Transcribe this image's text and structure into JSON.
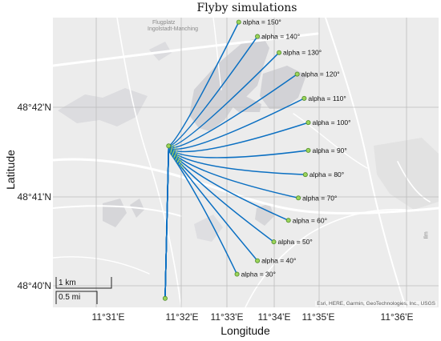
{
  "title": "Flyby simulations",
  "xlabel": "Longitude",
  "ylabel": "Latitude",
  "x_ticks": [
    "11°31'E",
    "11°32'E",
    "11°33'E",
    "11°34'E",
    "11°35'E",
    "11°36'E"
  ],
  "y_ticks": [
    "48°42'N",
    "48°41'N",
    "48°40'N"
  ],
  "attribution": "Esri, HERE, Garmin, GeoTechnologies, Inc., USGS",
  "scalebar": {
    "km_label": "1 km",
    "mi_label": "0.5 mi"
  },
  "basemap_labels": {
    "airfield_line1": "Flugplatz",
    "airfield_line2": "Ingolstadt-Manching",
    "town": "Ilm"
  },
  "colors": {
    "track": "#0a6fc2",
    "marker_fill": "#9bd45a",
    "marker_edge": "#4f8a2a",
    "map_bg": "#ececec",
    "forest": "#d2d2d6"
  },
  "chart_data": {
    "type": "map",
    "title": "Flyby simulations",
    "xlabel": "Longitude",
    "ylabel": "Latitude",
    "xlim_minutes": [
      30.3,
      36.9
    ],
    "ylim_minutes": [
      39.7,
      42.93
    ],
    "origin": {
      "lon_min": 32.22,
      "lat_min": 39.8
    },
    "turn_point": {
      "lon_min": 32.28,
      "lat_min": 41.5
    },
    "flybys": [
      {
        "label": "alpha = 30°",
        "end": {
          "lon_min": 33.45,
          "lat_min": 40.07
        }
      },
      {
        "label": "alpha = 40°",
        "end": {
          "lon_min": 33.8,
          "lat_min": 40.22
        }
      },
      {
        "label": "alpha = 50°",
        "end": {
          "lon_min": 34.08,
          "lat_min": 40.43
        }
      },
      {
        "label": "alpha = 60°",
        "end": {
          "lon_min": 34.33,
          "lat_min": 40.67
        }
      },
      {
        "label": "alpha = 70°",
        "end": {
          "lon_min": 34.5,
          "lat_min": 40.92
        }
      },
      {
        "label": "alpha = 80°",
        "end": {
          "lon_min": 34.62,
          "lat_min": 41.18
        }
      },
      {
        "label": "alpha = 90°",
        "end": {
          "lon_min": 34.67,
          "lat_min": 41.45
        }
      },
      {
        "label": "alpha = 100°",
        "end": {
          "lon_min": 34.67,
          "lat_min": 41.76
        }
      },
      {
        "label": "alpha = 110°",
        "end": {
          "lon_min": 34.6,
          "lat_min": 42.03
        }
      },
      {
        "label": "alpha = 120°",
        "end": {
          "lon_min": 34.48,
          "lat_min": 42.3
        }
      },
      {
        "label": "alpha = 130°",
        "end": {
          "lon_min": 34.17,
          "lat_min": 42.54
        }
      },
      {
        "label": "alpha = 140°",
        "end": {
          "lon_min": 33.8,
          "lat_min": 42.72
        }
      },
      {
        "label": "alpha = 150°",
        "end": {
          "lon_min": 33.48,
          "lat_min": 42.88
        }
      }
    ]
  }
}
